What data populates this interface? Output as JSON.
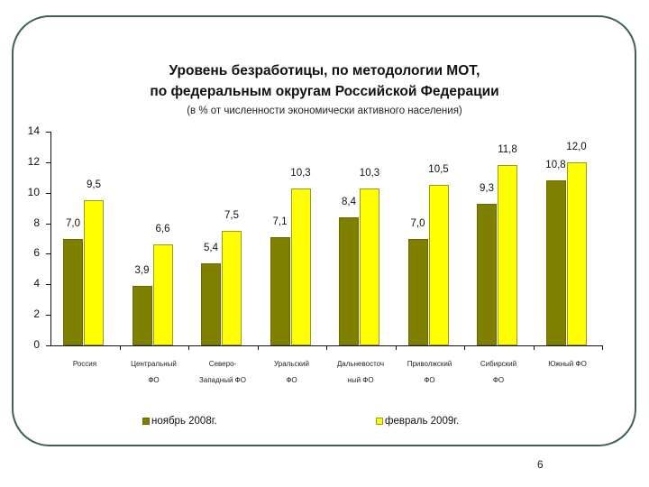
{
  "slide": {
    "title_line1": "Уровень безработицы, по методологии МОТ,",
    "title_line2": "по федеральным округам Российской Федерации",
    "subtitle": "(в % от численности экономически активного населения)",
    "page_number": "6"
  },
  "legend": {
    "items": [
      {
        "label": "ноябрь 2008г.",
        "color": "#7f7f00"
      },
      {
        "label": "февраль 2009г.",
        "color": "#ffff00"
      }
    ]
  },
  "chart_data": {
    "type": "bar",
    "title": "Уровень безработицы, по методологии МОТ, по федеральным округам Российской Федерации",
    "subtitle": "(в % от численности экономически активного населения)",
    "xlabel": "",
    "ylabel": "",
    "ylim": [
      0,
      14
    ],
    "yticks": [
      0,
      2,
      4,
      6,
      8,
      10,
      12,
      14
    ],
    "grid": false,
    "legend_position": "bottom",
    "categories": [
      [
        "Россия",
        ""
      ],
      [
        "Центральный",
        "ФО"
      ],
      [
        "Северо-",
        "Западный ФО"
      ],
      [
        "Уральский",
        "ФО"
      ],
      [
        "Дальневосточ",
        "ный ФО"
      ],
      [
        "Приволжский",
        "ФО"
      ],
      [
        "Сибирский",
        "ФО"
      ],
      [
        "Южный ФО",
        ""
      ]
    ],
    "series": [
      {
        "name": "ноябрь 2008г.",
        "color": "#7f7f00",
        "values": [
          7.0,
          3.9,
          5.4,
          7.1,
          8.4,
          7.0,
          9.3,
          10.8
        ],
        "labels": [
          "7,0",
          "3,9",
          "5,4",
          "7,1",
          "8,4",
          "7,0",
          "9,3",
          "10,8"
        ]
      },
      {
        "name": "февраль 2009г.",
        "color": "#ffff00",
        "values": [
          9.5,
          6.6,
          7.5,
          10.3,
          10.3,
          10.5,
          11.8,
          12.0
        ],
        "labels": [
          "9,5",
          "6,6",
          "7,5",
          "10,3",
          "10,3",
          "10,5",
          "11,8",
          "12,0"
        ]
      }
    ]
  }
}
